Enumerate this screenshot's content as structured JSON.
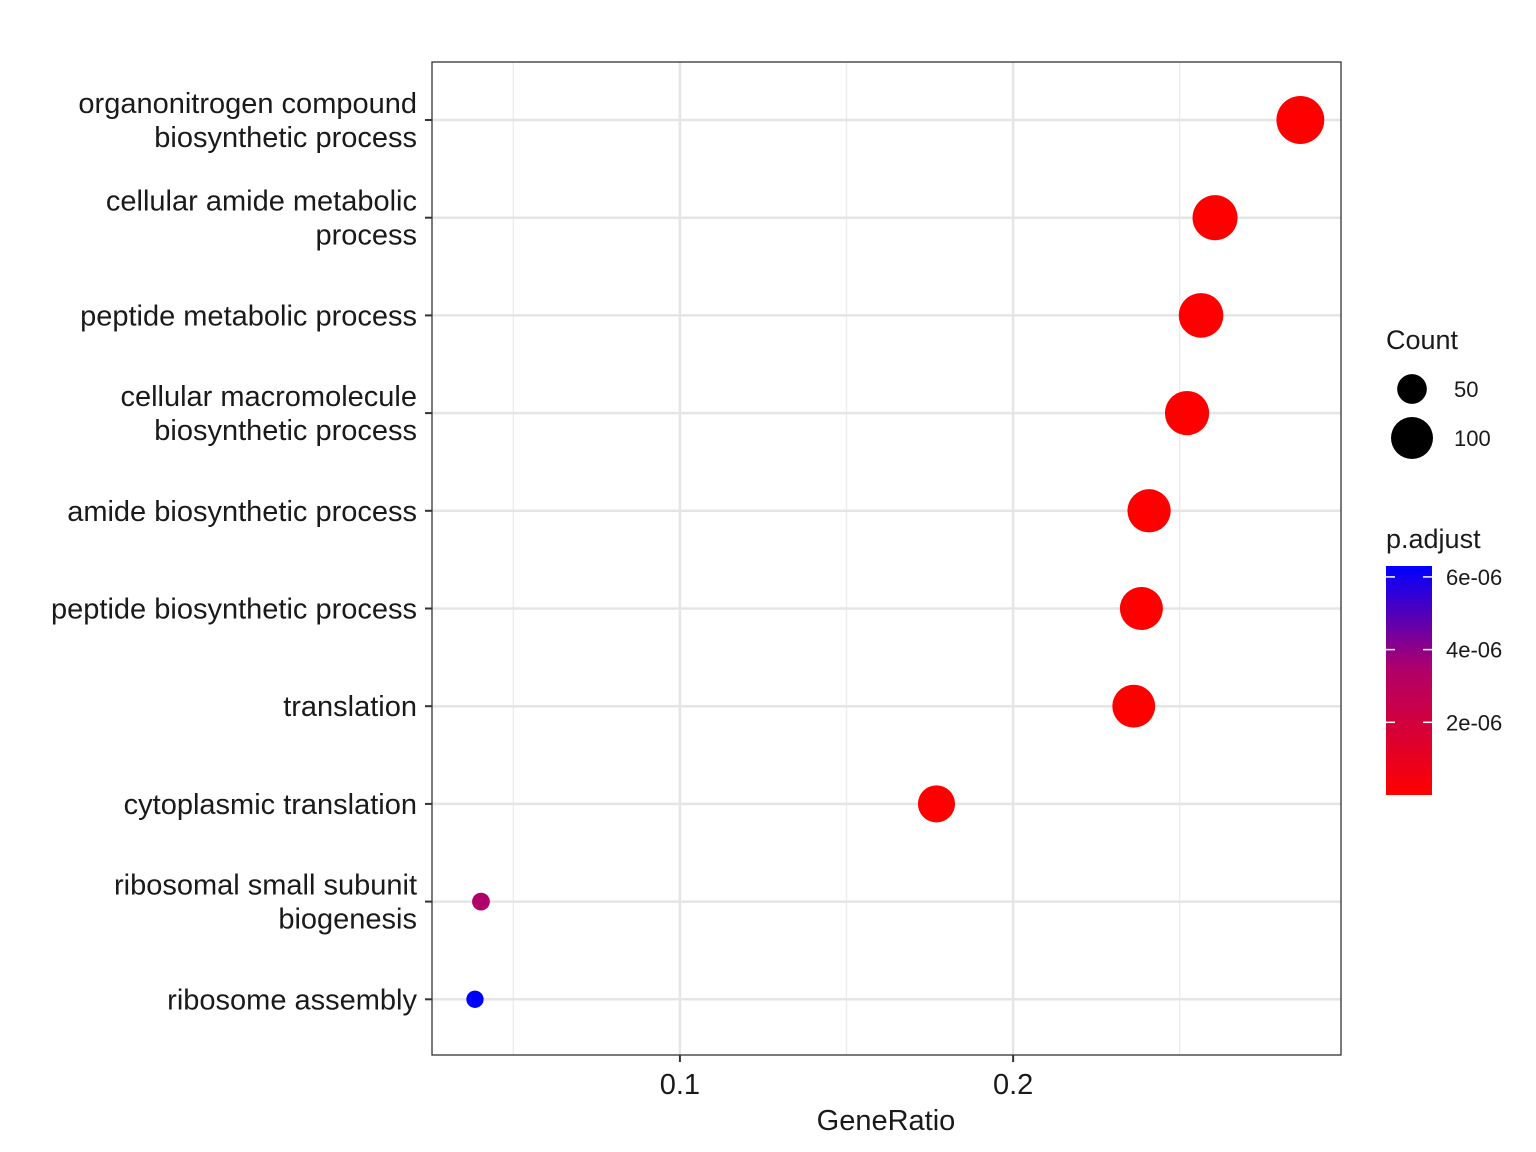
{
  "chart_data": {
    "type": "scatter",
    "xlabel": "GeneRatio",
    "ylabel": "",
    "xlim": [
      0.0256,
      0.2984
    ],
    "x_ticks": [
      0.1,
      0.2
    ],
    "x_tick_labels": [
      "0.1",
      "0.2"
    ],
    "grid": true,
    "categories": [
      "organonitrogen compound biosynthetic process",
      "cellular amide metabolic process",
      "peptide metabolic process",
      "cellular macromolecule biosynthetic process",
      "amide biosynthetic process",
      "peptide biosynthetic process",
      "translation",
      "cytoplasmic translation",
      "ribosomal small subunit biogenesis",
      "ribosome assembly"
    ],
    "category_label_lines": [
      [
        "organonitrogen compound",
        "biosynthetic process"
      ],
      [
        "cellular amide metabolic",
        "process"
      ],
      [
        "peptide metabolic process"
      ],
      [
        "cellular macromolecule",
        "biosynthetic process"
      ],
      [
        "amide biosynthetic process"
      ],
      [
        "peptide biosynthetic process"
      ],
      [
        "translation"
      ],
      [
        "cytoplasmic translation"
      ],
      [
        "ribosomal small subunit",
        "biogenesis"
      ],
      [
        "ribosome assembly"
      ]
    ],
    "points": [
      {
        "category": "organonitrogen compound biosynthetic process",
        "gene_ratio": 0.2862,
        "count": 130,
        "p_adjust": 1e-09,
        "color": "#ff0000"
      },
      {
        "category": "cellular amide metabolic process",
        "gene_ratio": 0.2606,
        "count": 115,
        "p_adjust": 1e-09,
        "color": "#ff0000"
      },
      {
        "category": "peptide metabolic process",
        "gene_ratio": 0.2564,
        "count": 113,
        "p_adjust": 1e-09,
        "color": "#ff0000"
      },
      {
        "category": "cellular macromolecule biosynthetic process",
        "gene_ratio": 0.2522,
        "count": 111,
        "p_adjust": 1e-09,
        "color": "#ff0000"
      },
      {
        "category": "amide biosynthetic process",
        "gene_ratio": 0.2408,
        "count": 106,
        "p_adjust": 1e-09,
        "color": "#ff0000"
      },
      {
        "category": "peptide biosynthetic process",
        "gene_ratio": 0.2385,
        "count": 105,
        "p_adjust": 1e-09,
        "color": "#ff0000"
      },
      {
        "category": "translation",
        "gene_ratio": 0.2362,
        "count": 104,
        "p_adjust": 1e-09,
        "color": "#ff0000"
      },
      {
        "category": "cytoplasmic translation",
        "gene_ratio": 0.177,
        "count": 78,
        "p_adjust": 1e-09,
        "color": "#ff0000"
      },
      {
        "category": "ribosomal small subunit biogenesis",
        "gene_ratio": 0.0403,
        "count": 18,
        "p_adjust": 4.4e-06,
        "color": "#b0006a"
      },
      {
        "category": "ribosome assembly",
        "gene_ratio": 0.0385,
        "count": 17,
        "p_adjust": 6.3e-06,
        "color": "#0000ff"
      }
    ],
    "legend_size": {
      "title": "Count",
      "entries": [
        {
          "label": "50",
          "value": 50
        },
        {
          "label": "100",
          "value": 100
        }
      ]
    },
    "legend_color": {
      "title": "p.adjust",
      "low_color": "#ff0000",
      "high_color": "#0000ff",
      "range": [
        1e-09,
        6.3e-06
      ],
      "ticks": [
        {
          "label": "6e-06",
          "value": 6e-06
        },
        {
          "label": "4e-06",
          "value": 4e-06
        },
        {
          "label": "2e-06",
          "value": 2e-06
        }
      ]
    },
    "legend_placement": "right"
  }
}
